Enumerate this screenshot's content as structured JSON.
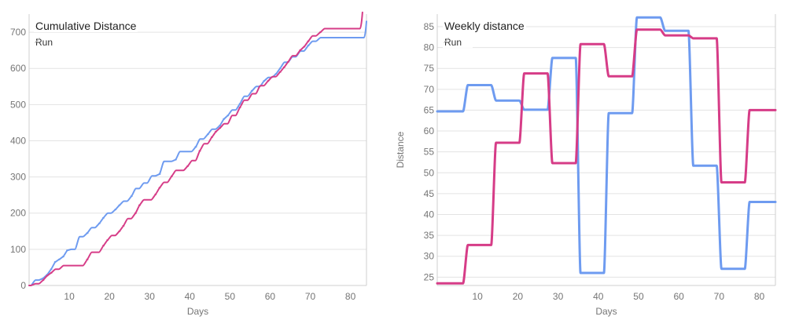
{
  "chart_data": [
    {
      "type": "line",
      "title": "Cumulative Distance",
      "subtitle": "Run",
      "xlabel": "Days",
      "ylabel": "",
      "xlim": [
        0,
        84
      ],
      "ylim": [
        0,
        750
      ],
      "xticks": [
        10,
        20,
        30,
        40,
        50,
        60,
        70,
        80
      ],
      "yticks": [
        0,
        100,
        200,
        300,
        400,
        500,
        600,
        700
      ],
      "grid": true,
      "series": [
        {
          "color": "#6e9bf0",
          "steps": [
            [
              0,
              0
            ],
            [
              1,
              15
            ],
            [
              3,
              20
            ],
            [
              4,
              30
            ],
            [
              5,
              45
            ],
            [
              6,
              65
            ],
            [
              7,
              72
            ],
            [
              8,
              80
            ],
            [
              9,
              97
            ],
            [
              10,
              100
            ],
            [
              12,
              135
            ],
            [
              14,
              145
            ],
            [
              15,
              160
            ],
            [
              17,
              172
            ],
            [
              18,
              187
            ],
            [
              19,
              200
            ],
            [
              21,
              210
            ],
            [
              22,
              222
            ],
            [
              23,
              233
            ],
            [
              25,
              247
            ],
            [
              26,
              268
            ],
            [
              28,
              283
            ],
            [
              30,
              303
            ],
            [
              32,
              308
            ],
            [
              33,
              343
            ],
            [
              36,
              348
            ],
            [
              37,
              370
            ],
            [
              41,
              383
            ],
            [
              42,
              405
            ],
            [
              44,
              418
            ],
            [
              45,
              432
            ],
            [
              47,
              442
            ],
            [
              48,
              460
            ],
            [
              49,
              470
            ],
            [
              50,
              485
            ],
            [
              52,
              502
            ],
            [
              53,
              523
            ],
            [
              55,
              538
            ],
            [
              56,
              550
            ],
            [
              58,
              565
            ],
            [
              59,
              575
            ],
            [
              61,
              585
            ],
            [
              62,
              600
            ],
            [
              63,
              617
            ],
            [
              65,
              632
            ],
            [
              67,
              648
            ],
            [
              69,
              663
            ],
            [
              70,
              675
            ],
            [
              72,
              685
            ],
            [
              84,
              730
            ]
          ]
        },
        {
          "color": "#d63c87",
          "steps": [
            [
              0,
              0
            ],
            [
              1,
              5
            ],
            [
              3,
              15
            ],
            [
              4,
              27
            ],
            [
              5,
              35
            ],
            [
              6,
              45
            ],
            [
              8,
              55
            ],
            [
              14,
              72
            ],
            [
              15,
              92
            ],
            [
              18,
              110
            ],
            [
              19,
              125
            ],
            [
              20,
              138
            ],
            [
              22,
              150
            ],
            [
              23,
              165
            ],
            [
              24,
              185
            ],
            [
              26,
              200
            ],
            [
              27,
              222
            ],
            [
              28,
              237
            ],
            [
              31,
              252
            ],
            [
              32,
              270
            ],
            [
              33,
              285
            ],
            [
              35,
              302
            ],
            [
              36,
              318
            ],
            [
              39,
              330
            ],
            [
              40,
              345
            ],
            [
              42,
              372
            ],
            [
              43,
              392
            ],
            [
              45,
              410
            ],
            [
              46,
              425
            ],
            [
              47,
              435
            ],
            [
              48,
              447
            ],
            [
              50,
              470
            ],
            [
              52,
              492
            ],
            [
              53,
              512
            ],
            [
              55,
              530
            ],
            [
              57,
              552
            ],
            [
              59,
              565
            ],
            [
              60,
              577
            ],
            [
              62,
              590
            ],
            [
              63,
              603
            ],
            [
              64,
              618
            ],
            [
              65,
              635
            ],
            [
              67,
              650
            ],
            [
              68,
              660
            ],
            [
              69,
              675
            ],
            [
              70,
              690
            ],
            [
              72,
              700
            ],
            [
              73,
              710
            ],
            [
              83,
              755
            ]
          ]
        }
      ]
    },
    {
      "type": "line",
      "title": "Weekly distance",
      "subtitle": "Run",
      "xlabel": "Days",
      "ylabel": "Distance",
      "xlim": [
        0,
        84
      ],
      "ylim": [
        23,
        88
      ],
      "xticks": [
        10,
        20,
        30,
        40,
        50,
        60,
        70,
        80
      ],
      "yticks": [
        25,
        30,
        35,
        40,
        45,
        50,
        55,
        60,
        65,
        70,
        75,
        80,
        85
      ],
      "grid": true,
      "series": [
        {
          "color": "#6e9bf0",
          "steps": [
            [
              0,
              64.7
            ],
            [
              7,
              71.0
            ],
            [
              14,
              67.3
            ],
            [
              21,
              65.1
            ],
            [
              28,
              77.5
            ],
            [
              35,
              26.0
            ],
            [
              42,
              64.3
            ],
            [
              49,
              87.2
            ],
            [
              56,
              84.0
            ],
            [
              63,
              51.7
            ],
            [
              70,
              27.0
            ],
            [
              77,
              43.0
            ],
            [
              84,
              43.0
            ]
          ]
        },
        {
          "color": "#d63c87",
          "steps": [
            [
              0,
              23.5
            ],
            [
              7,
              32.7
            ],
            [
              14,
              57.2
            ],
            [
              21,
              73.8
            ],
            [
              28,
              52.3
            ],
            [
              35,
              80.8
            ],
            [
              42,
              73.1
            ],
            [
              49,
              84.3
            ],
            [
              56,
              82.9
            ],
            [
              63,
              82.2
            ],
            [
              70,
              47.7
            ],
            [
              77,
              65.0
            ],
            [
              84,
              65.0
            ]
          ]
        }
      ]
    }
  ]
}
